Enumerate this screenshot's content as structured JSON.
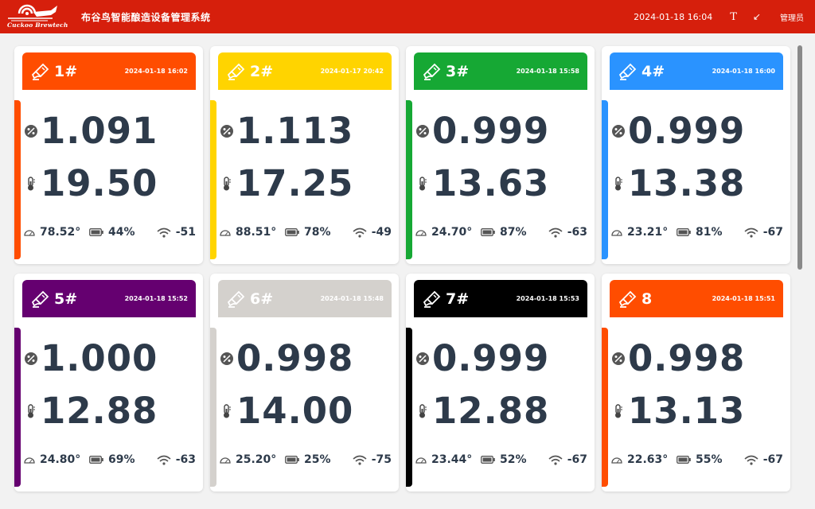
{
  "header": {
    "logo_text": "Cuckoo Brewtech",
    "title": "布谷鸟智能酿造设备管理系统",
    "datetime": "2024-01-18 16:04",
    "font_icon": "T",
    "collapse_icon": "↙",
    "user": "管理员",
    "background": "#d61f0c"
  },
  "devices": [
    {
      "name": "1#",
      "time": "2024-01-18 16:02",
      "gravity": "1.091",
      "temperature": "19.50",
      "angle": "78.52°",
      "battery": "44%",
      "signal": "-51",
      "color": "#ff4d00"
    },
    {
      "name": "2#",
      "time": "2024-01-17 20:42",
      "gravity": "1.113",
      "temperature": "17.25",
      "angle": "88.51°",
      "battery": "78%",
      "signal": "-49",
      "color": "#ffd400"
    },
    {
      "name": "3#",
      "time": "2024-01-18 15:58",
      "gravity": "0.999",
      "temperature": "13.63",
      "angle": "24.70°",
      "battery": "87%",
      "signal": "-63",
      "color": "#16a834"
    },
    {
      "name": "4#",
      "time": "2024-01-18 16:00",
      "gravity": "0.999",
      "temperature": "13.38",
      "angle": "23.21°",
      "battery": "81%",
      "signal": "-67",
      "color": "#2a93ff"
    },
    {
      "name": "5#",
      "time": "2024-01-18 15:52",
      "gravity": "1.000",
      "temperature": "12.88",
      "angle": "24.80°",
      "battery": "69%",
      "signal": "-63",
      "color": "#650070"
    },
    {
      "name": "6#",
      "time": "2024-01-18 15:48",
      "gravity": "0.998",
      "temperature": "14.00",
      "angle": "25.20°",
      "battery": "25%",
      "signal": "-75",
      "color": "#d4d1cd"
    },
    {
      "name": "7#",
      "time": "2024-01-18 15:53",
      "gravity": "0.999",
      "temperature": "12.88",
      "angle": "23.44°",
      "battery": "52%",
      "signal": "-67",
      "color": "#000000"
    },
    {
      "name": "8",
      "time": "2024-01-18 15:51",
      "gravity": "0.998",
      "temperature": "13.13",
      "angle": "22.63°",
      "battery": "55%",
      "signal": "-67",
      "color": "#ff4d00"
    }
  ],
  "icons": {
    "hydrometer": "hydrometer-icon",
    "gravity": "percent-icon",
    "temperature": "thermometer-icon",
    "angle": "protractor-icon",
    "battery": "battery-icon",
    "signal": "wifi-icon"
  }
}
